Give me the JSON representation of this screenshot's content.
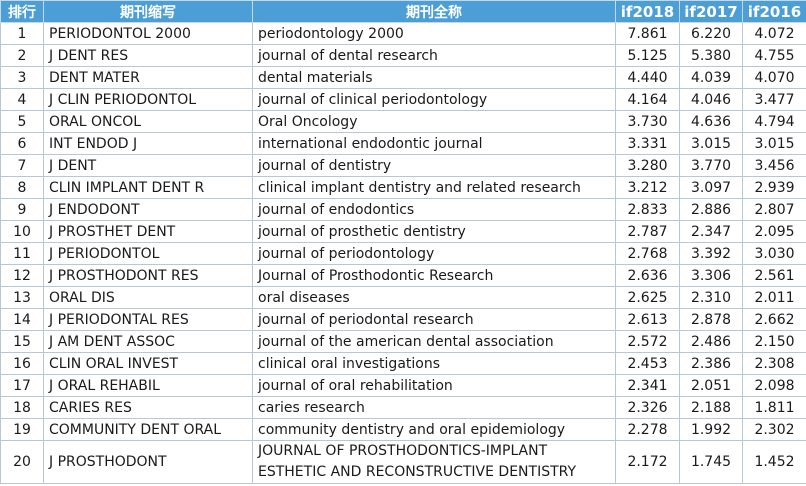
{
  "headers": {
    "rank": "排行",
    "abbr": "期刊缩写",
    "full": "期刊全称",
    "if2018": "if2018",
    "if2017": "if2017",
    "if2016": "if2016"
  },
  "rows": [
    {
      "rank": "1",
      "abbr": "PERIODONTOL 2000",
      "full": "periodontology 2000",
      "if2018": "7.861",
      "if2017": "6.220",
      "if2016": "4.072"
    },
    {
      "rank": "2",
      "abbr": "J DENT RES",
      "full": "journal of dental research",
      "if2018": "5.125",
      "if2017": "5.380",
      "if2016": "4.755"
    },
    {
      "rank": "3",
      "abbr": "DENT MATER",
      "full": "dental materials",
      "if2018": "4.440",
      "if2017": "4.039",
      "if2016": "4.070"
    },
    {
      "rank": "4",
      "abbr": "J CLIN PERIODONTOL",
      "full": "journal of clinical periodontology",
      "if2018": "4.164",
      "if2017": "4.046",
      "if2016": "3.477"
    },
    {
      "rank": "5",
      "abbr": "ORAL ONCOL",
      "full": "Oral Oncology",
      "if2018": "3.730",
      "if2017": "4.636",
      "if2016": "4.794"
    },
    {
      "rank": "6",
      "abbr": "INT ENDOD J",
      "full": "international endodontic journal",
      "if2018": "3.331",
      "if2017": "3.015",
      "if2016": "3.015"
    },
    {
      "rank": "7",
      "abbr": "J DENT",
      "full": "journal of dentistry",
      "if2018": "3.280",
      "if2017": "3.770",
      "if2016": "3.456"
    },
    {
      "rank": "8",
      "abbr": "CLIN IMPLANT DENT R",
      "full": "clinical implant dentistry and related research",
      "if2018": "3.212",
      "if2017": "3.097",
      "if2016": "2.939"
    },
    {
      "rank": "9",
      "abbr": "J ENDODONT",
      "full": "journal of endodontics",
      "if2018": "2.833",
      "if2017": "2.886",
      "if2016": "2.807"
    },
    {
      "rank": "10",
      "abbr": "J PROSTHET DENT",
      "full": "journal of prosthetic dentistry",
      "if2018": "2.787",
      "if2017": "2.347",
      "if2016": "2.095"
    },
    {
      "rank": "11",
      "abbr": "J PERIODONTOL",
      "full": "journal of periodontology",
      "if2018": "2.768",
      "if2017": "3.392",
      "if2016": "3.030"
    },
    {
      "rank": "12",
      "abbr": "J PROSTHODONT RES",
      "full": "Journal of Prosthodontic Research",
      "if2018": "2.636",
      "if2017": "3.306",
      "if2016": "2.561"
    },
    {
      "rank": "13",
      "abbr": "ORAL DIS",
      "full": "oral diseases",
      "if2018": "2.625",
      "if2017": "2.310",
      "if2016": "2.011"
    },
    {
      "rank": "14",
      "abbr": "J PERIODONTAL RES",
      "full": "journal of periodontal research",
      "if2018": "2.613",
      "if2017": "2.878",
      "if2016": "2.662"
    },
    {
      "rank": "15",
      "abbr": "J AM DENT ASSOC",
      "full": "journal of the american dental association",
      "if2018": "2.572",
      "if2017": "2.486",
      "if2016": "2.150"
    },
    {
      "rank": "16",
      "abbr": "CLIN ORAL INVEST",
      "full": "clinical oral investigations",
      "if2018": "2.453",
      "if2017": "2.386",
      "if2016": "2.308"
    },
    {
      "rank": "17",
      "abbr": "J ORAL REHABIL",
      "full": "journal of oral rehabilitation",
      "if2018": "2.341",
      "if2017": "2.051",
      "if2016": "2.098"
    },
    {
      "rank": "18",
      "abbr": "CARIES RES",
      "full": "caries research",
      "if2018": "2.326",
      "if2017": "2.188",
      "if2016": "1.811"
    },
    {
      "rank": "19",
      "abbr": "COMMUNITY DENT ORAL",
      "full": "community dentistry and oral epidemiology",
      "if2018": "2.278",
      "if2017": "1.992",
      "if2016": "2.302"
    },
    {
      "rank": "20",
      "abbr": "J PROSTHODONT",
      "full": "JOURNAL OF PROSTHODONTICS-IMPLANT ESTHETIC AND RECONSTRUCTIVE DENTISTRY",
      "if2018": "2.172",
      "if2017": "1.745",
      "if2016": "1.452"
    }
  ]
}
